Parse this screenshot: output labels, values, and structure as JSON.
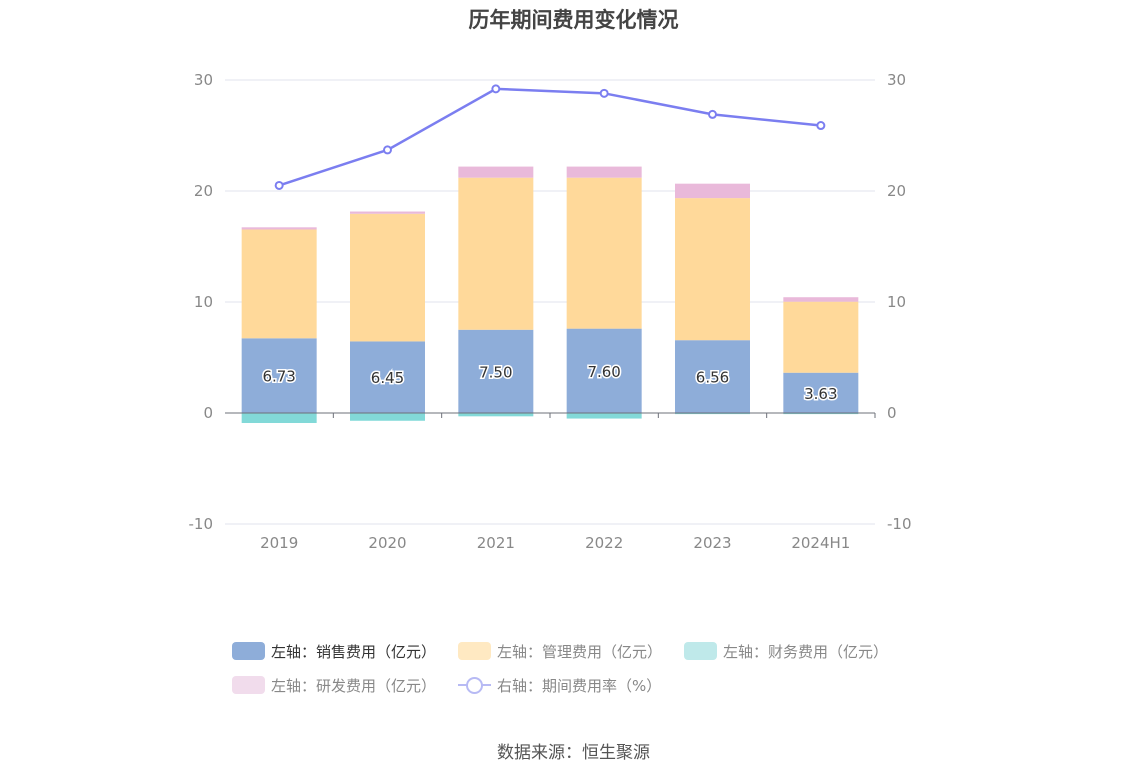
{
  "title": "历年期间费用变化情况",
  "source": "数据来源：恒生聚源",
  "chart_data": {
    "type": "bar",
    "categories": [
      "2019",
      "2020",
      "2021",
      "2022",
      "2023",
      "2024H1"
    ],
    "left_axis": {
      "ticks": [
        "30",
        "20",
        "10",
        "0",
        "-10"
      ],
      "ylim": [
        -10,
        30
      ]
    },
    "right_axis": {
      "ticks": [
        "30",
        "20",
        "10",
        "0",
        "-10"
      ],
      "ylim": [
        -10,
        30
      ]
    },
    "series": [
      {
        "name": "左轴：销售费用（亿元）",
        "type": "bar",
        "stack": "cost",
        "color": "#8eadd9",
        "values": [
          6.73,
          6.45,
          7.5,
          7.6,
          6.56,
          3.63
        ],
        "labels": [
          "6.73",
          "6.45",
          "7.50",
          "7.60",
          "6.56",
          "3.63"
        ]
      },
      {
        "name": "左轴：管理费用（亿元）",
        "type": "bar",
        "stack": "cost",
        "color": "#ffd99a",
        "values": [
          9.8,
          11.5,
          13.7,
          13.6,
          12.8,
          6.4
        ]
      },
      {
        "name": "左轴：财务费用（亿元）",
        "type": "bar",
        "stack": "cost",
        "color": "#82d9d8",
        "values": [
          -0.9,
          -0.7,
          -0.3,
          -0.5,
          -0.1,
          -0.1
        ]
      },
      {
        "name": "左轴：研发费用（亿元）",
        "type": "bar",
        "stack": "cost",
        "color": "#e9b9da",
        "values": [
          0.2,
          0.2,
          1.0,
          1.0,
          1.3,
          0.4
        ]
      },
      {
        "name": "右轴：期间费用率（%）",
        "type": "line",
        "axis": "right",
        "color": "#7b7ef0",
        "values": [
          20.5,
          23.7,
          29.2,
          28.8,
          26.9,
          25.9
        ]
      }
    ],
    "legend": {
      "position": "bottom",
      "colors": [
        "#8eadd9",
        "#ffe9c2",
        "#bfe9ea",
        "#f1dcec",
        "#b7baf4"
      ],
      "dimmed": [
        false,
        true,
        true,
        true,
        true
      ]
    },
    "grid": true
  }
}
